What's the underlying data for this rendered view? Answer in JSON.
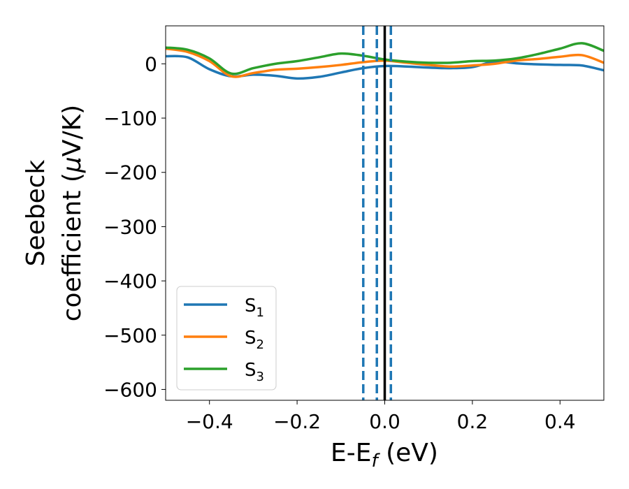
{
  "chart_data": {
    "type": "line",
    "xlabel": {
      "main": "E-E",
      "sub": "f",
      "unit": " (eV)"
    },
    "ylabel": {
      "line1": "Seebeck",
      "line2_prefix": "coefficient  (",
      "mu": "μ",
      "line2_suffix": "V/K)"
    },
    "xlim": [
      -0.5,
      0.5
    ],
    "ylim": [
      -620,
      70
    ],
    "x_ticks": [
      -0.4,
      -0.2,
      0.0,
      0.2,
      0.4
    ],
    "x_tick_labels": [
      "−0.4",
      "−0.2",
      "0.0",
      "0.2",
      "0.4"
    ],
    "y_ticks": [
      0,
      -100,
      -200,
      -300,
      -400,
      -500,
      -600
    ],
    "y_tick_labels": [
      "0",
      "−100",
      "−200",
      "−300",
      "−400",
      "−500",
      "−600"
    ],
    "grid": false,
    "legend_position": "lower-left",
    "vlines": [
      {
        "x": -0.049,
        "style": "dashed",
        "color": "#1f77b4"
      },
      {
        "x": -0.018,
        "style": "dashed",
        "color": "#1f77b4"
      },
      {
        "x": 0.014,
        "style": "dashed",
        "color": "#1f77b4"
      },
      {
        "x": 0.0,
        "style": "solid",
        "color": "#000000"
      }
    ],
    "series": [
      {
        "name": "S",
        "sub": "1",
        "color": "#1f77b4",
        "x": [
          -0.5,
          -0.45,
          -0.4,
          -0.35,
          -0.3,
          -0.25,
          -0.2,
          -0.15,
          -0.1,
          -0.05,
          0.0,
          0.05,
          0.1,
          0.15,
          0.2,
          0.25,
          0.3,
          0.35,
          0.4,
          0.45,
          0.5
        ],
        "y": [
          14,
          12,
          -10,
          -23,
          -20,
          -22,
          -27,
          -24,
          -16,
          -8,
          -4,
          -5,
          -7,
          -8,
          -6,
          4,
          1,
          -1,
          -2,
          -3,
          -12
        ]
      },
      {
        "name": "S",
        "sub": "2",
        "color": "#ff7f0e",
        "x": [
          -0.5,
          -0.45,
          -0.4,
          -0.35,
          -0.3,
          -0.25,
          -0.2,
          -0.15,
          -0.1,
          -0.05,
          0.0,
          0.05,
          0.1,
          0.15,
          0.2,
          0.25,
          0.3,
          0.35,
          0.4,
          0.45,
          0.5
        ],
        "y": [
          28,
          22,
          5,
          -23,
          -17,
          -11,
          -9,
          -6,
          -2,
          3,
          6,
          2,
          -2,
          -5,
          -3,
          0,
          6,
          9,
          13,
          16,
          2
        ]
      },
      {
        "name": "S",
        "sub": "3",
        "color": "#2ca02c",
        "x": [
          -0.5,
          -0.45,
          -0.4,
          -0.35,
          -0.3,
          -0.25,
          -0.2,
          -0.15,
          -0.1,
          -0.05,
          0.0,
          0.05,
          0.1,
          0.15,
          0.2,
          0.25,
          0.3,
          0.35,
          0.4,
          0.45,
          0.5
        ],
        "y": [
          30,
          26,
          10,
          -18,
          -8,
          0,
          5,
          12,
          19,
          15,
          8,
          4,
          2,
          2,
          5,
          6,
          10,
          18,
          28,
          38,
          24
        ]
      }
    ]
  }
}
